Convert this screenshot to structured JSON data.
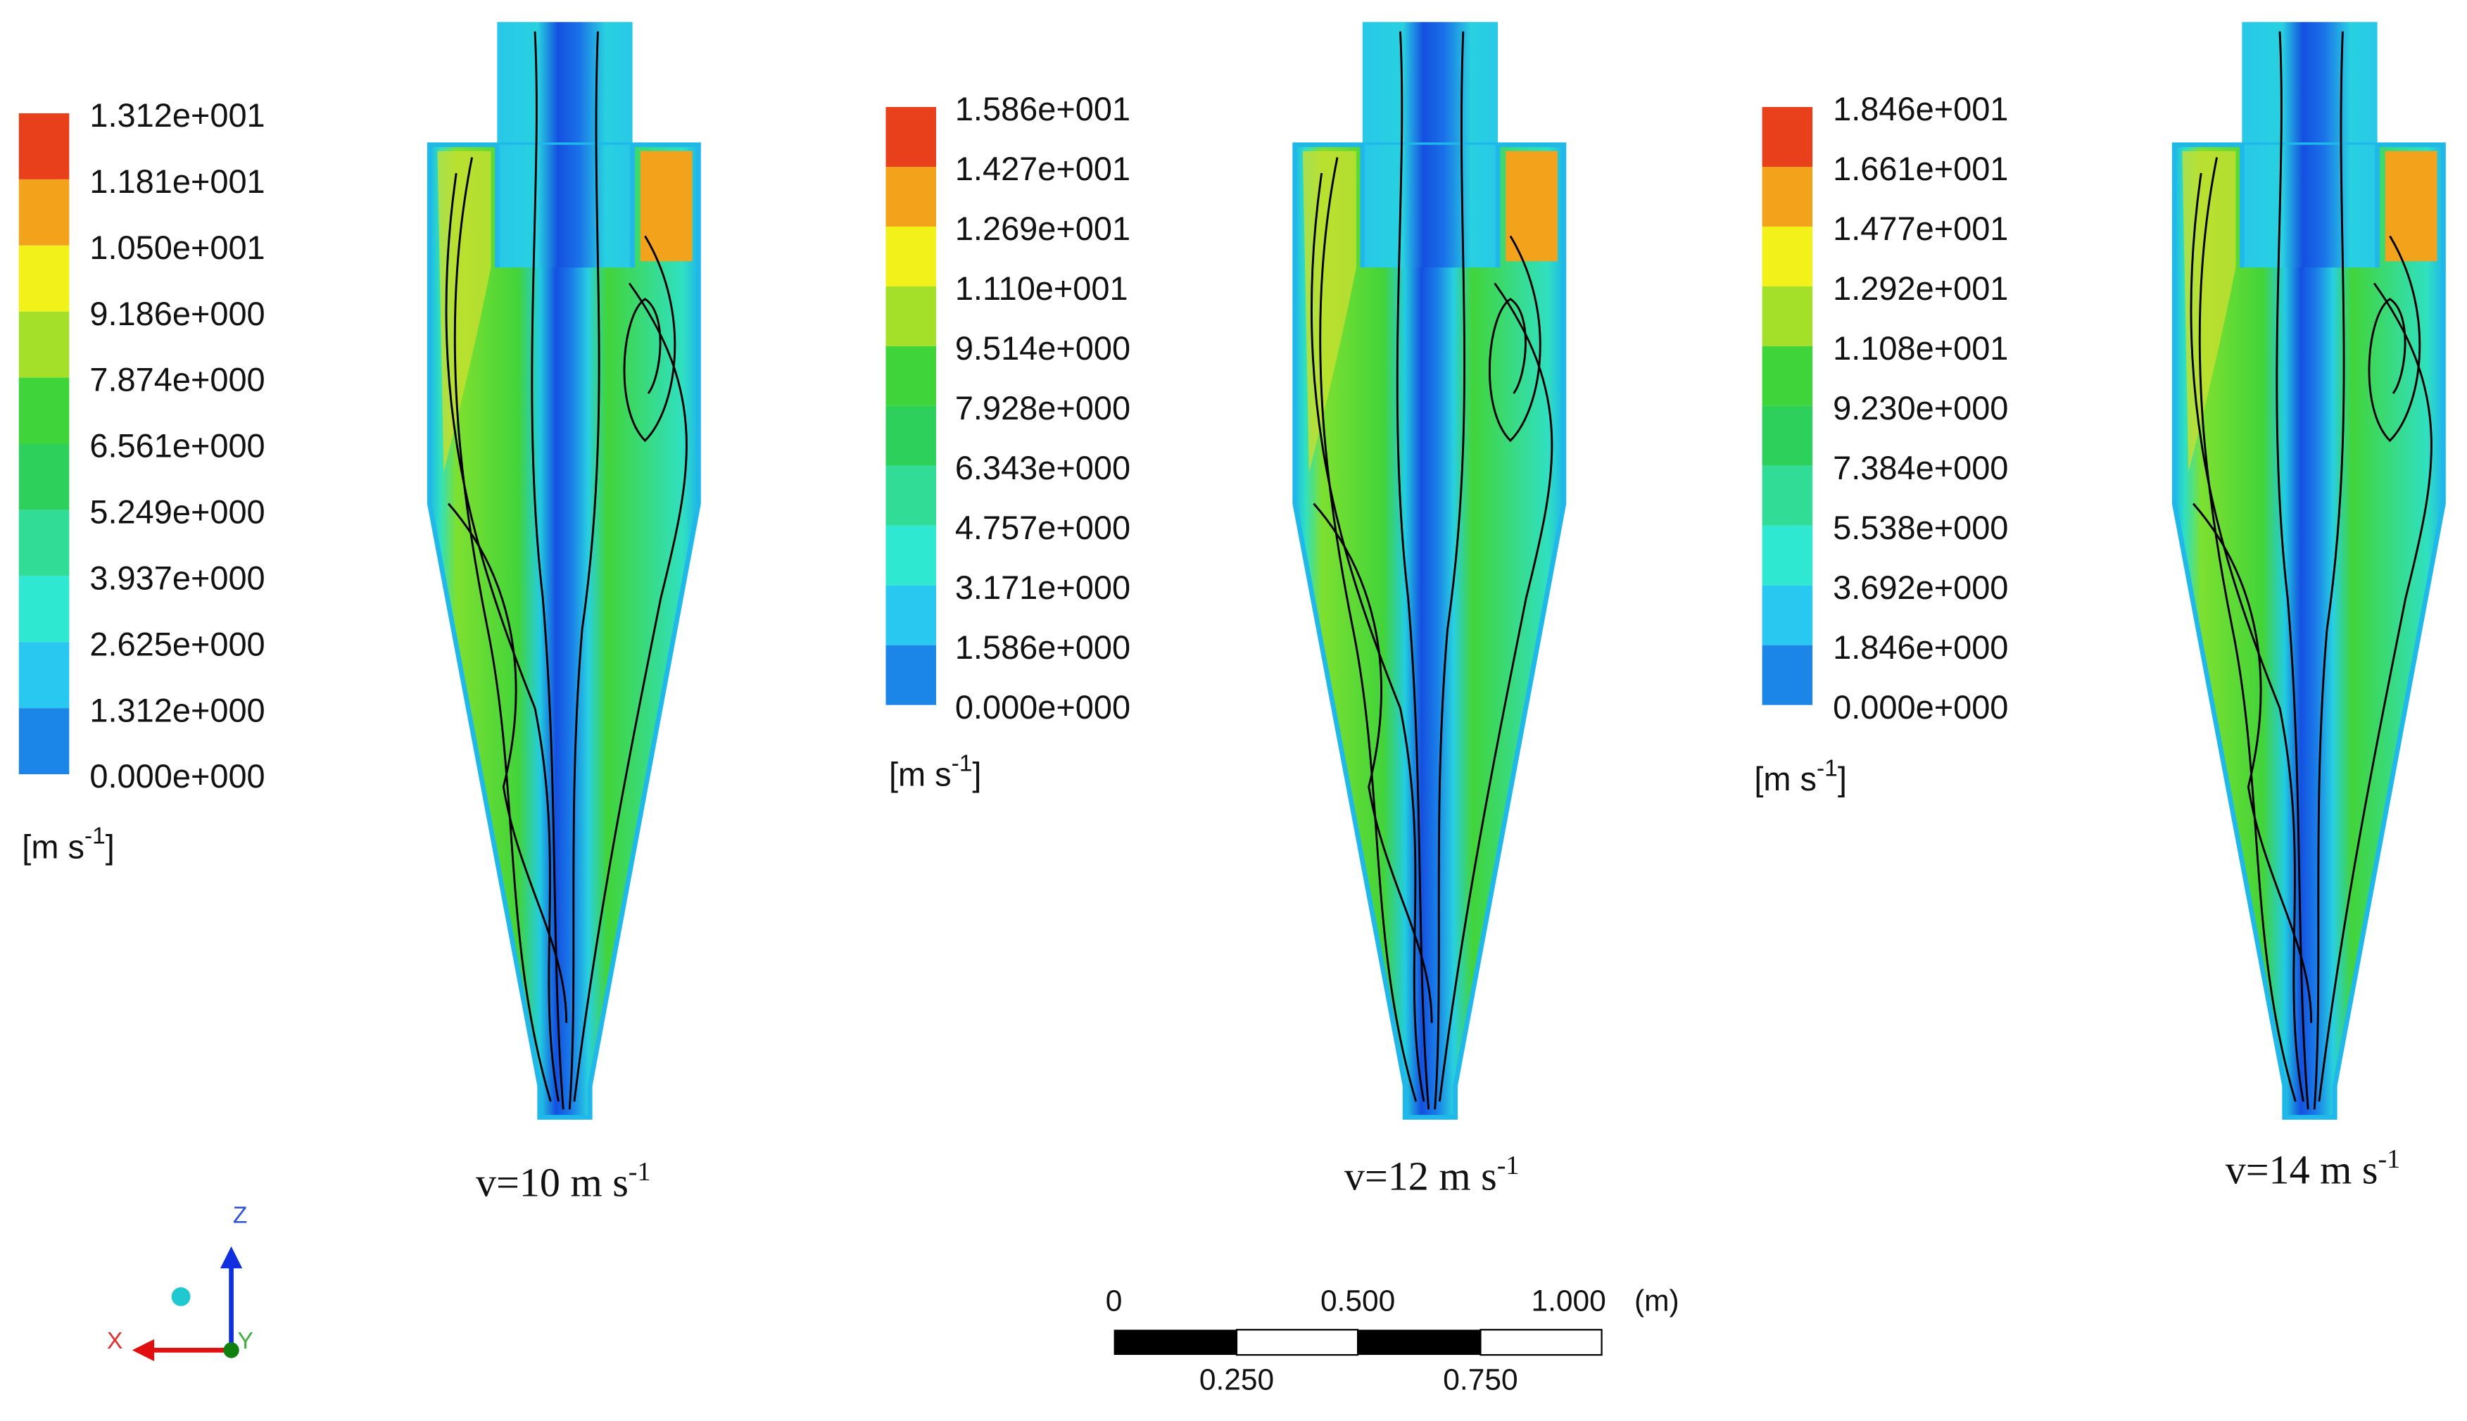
{
  "legends": [
    {
      "labels": [
        "1.312e+001",
        "1.181e+001",
        "1.050e+001",
        "9.186e+000",
        "7.874e+000",
        "6.561e+000",
        "5.249e+000",
        "3.937e+000",
        "2.625e+000",
        "1.312e+000",
        "0.000e+000"
      ],
      "unit": [
        "[m s",
        "-1",
        "]"
      ]
    },
    {
      "labels": [
        "1.586e+001",
        "1.427e+001",
        "1.269e+001",
        "1.110e+001",
        "9.514e+000",
        "7.928e+000",
        "6.343e+000",
        "4.757e+000",
        "3.171e+000",
        "1.586e+000",
        "0.000e+000"
      ],
      "unit": [
        "[m s",
        "-1",
        "]"
      ]
    },
    {
      "labels": [
        "1.846e+001",
        "1.661e+001",
        "1.477e+001",
        "1.292e+001",
        "1.108e+001",
        "9.230e+000",
        "7.384e+000",
        "5.538e+000",
        "3.692e+000",
        "1.846e+000",
        "0.000e+000"
      ],
      "unit": [
        "[m s",
        "-1",
        "]"
      ]
    }
  ],
  "captions": [
    [
      "v=10 m s",
      "-1"
    ],
    [
      "v=12 m s",
      "-1"
    ],
    [
      "v=14 m s",
      "-1"
    ]
  ],
  "scale_bar": {
    "top_labels": [
      "0",
      "0.500",
      "1.000",
      "(m)"
    ],
    "bottom_labels": [
      "0.250",
      "0.750"
    ]
  },
  "axes": {
    "z": "Z",
    "x": "X",
    "y": "Y"
  }
}
